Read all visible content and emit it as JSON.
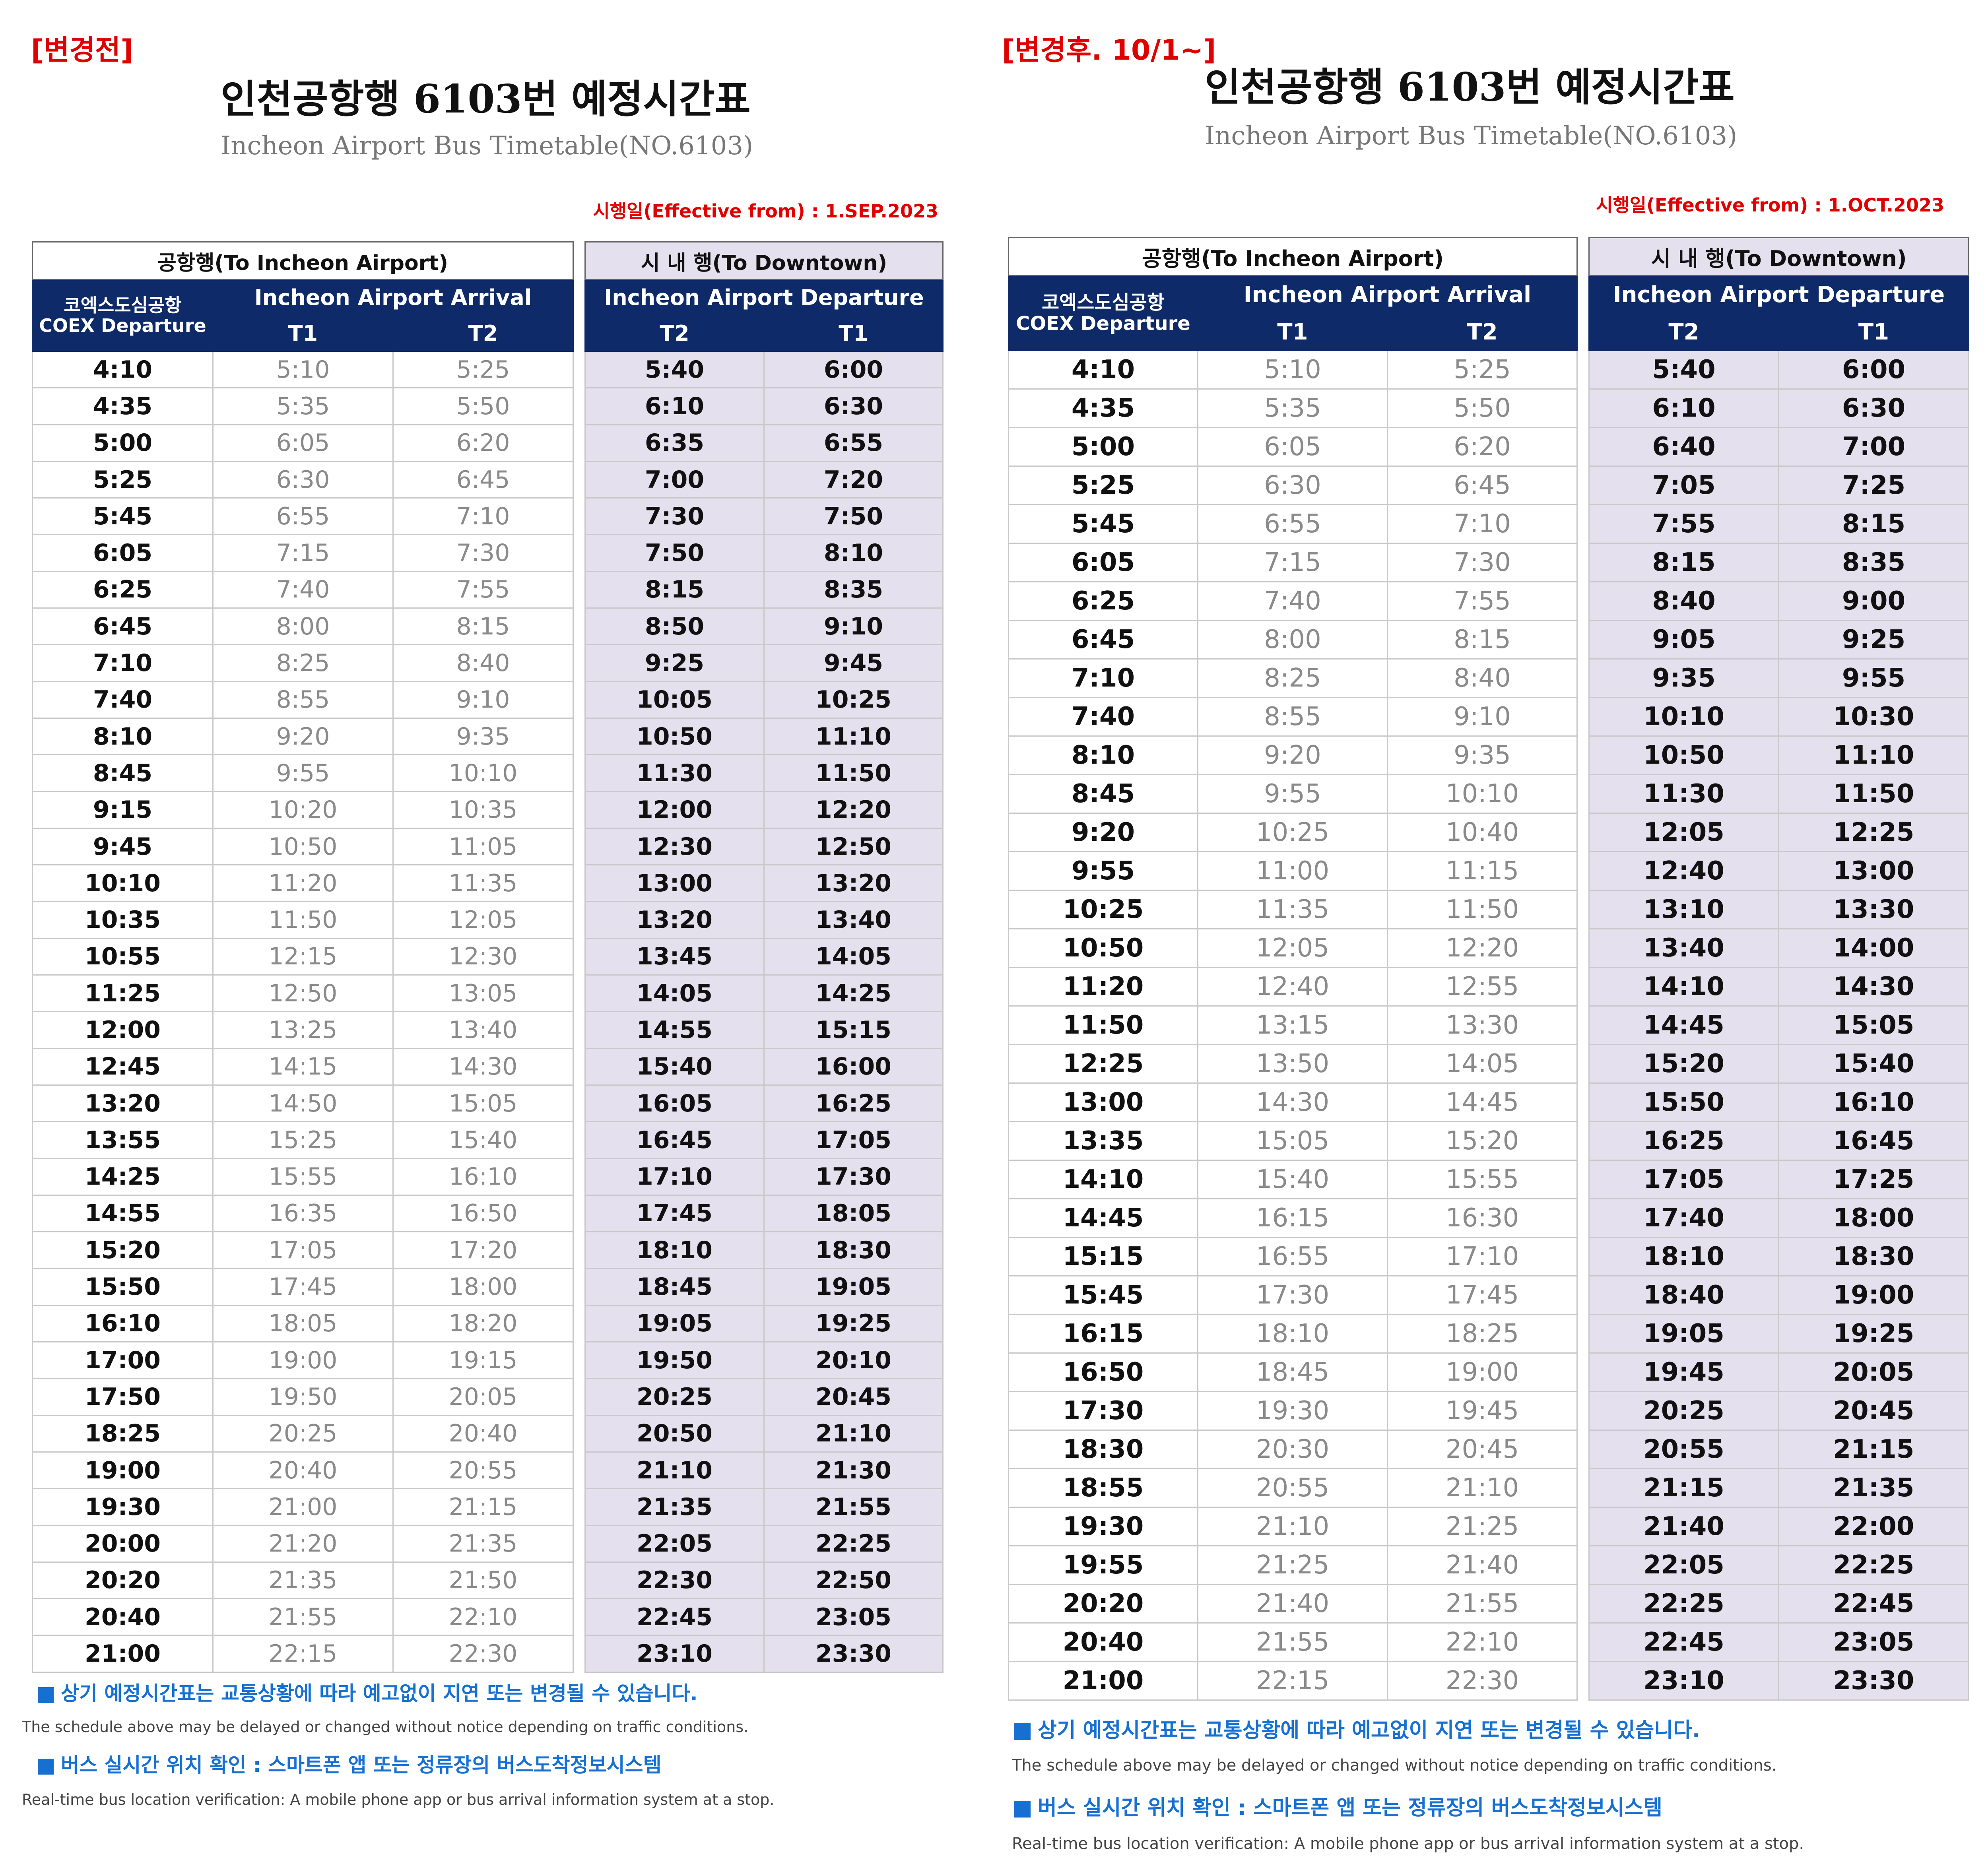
{
  "before": {
    "tag": "[변경전]",
    "title": "인천공항행 6103번 예정시간표",
    "subtitle": "Incheon Airport Bus Timetable(NO.6103)",
    "effective": "시행일(Effective from) : 1.SEP.2023",
    "to_airport": {
      "group_title": "공항행(To Incheon Airport)",
      "departure_ko": "코엑스도심공항",
      "departure_en": "COEX Departure",
      "arrival": "Incheon Airport Arrival",
      "col1": "T1",
      "col2": "T2",
      "rows": [
        [
          "4:10",
          "5:10",
          "5:25"
        ],
        [
          "4:35",
          "5:35",
          "5:50"
        ],
        [
          "5:00",
          "6:05",
          "6:20"
        ],
        [
          "5:25",
          "6:30",
          "6:45"
        ],
        [
          "5:45",
          "6:55",
          "7:10"
        ],
        [
          "6:05",
          "7:15",
          "7:30"
        ],
        [
          "6:25",
          "7:40",
          "7:55"
        ],
        [
          "6:45",
          "8:00",
          "8:15"
        ],
        [
          "7:10",
          "8:25",
          "8:40"
        ],
        [
          "7:40",
          "8:55",
          "9:10"
        ],
        [
          "8:10",
          "9:20",
          "9:35"
        ],
        [
          "8:45",
          "9:55",
          "10:10"
        ],
        [
          "9:15",
          "10:20",
          "10:35"
        ],
        [
          "9:45",
          "10:50",
          "11:05"
        ],
        [
          "10:10",
          "11:20",
          "11:35"
        ],
        [
          "10:35",
          "11:50",
          "12:05"
        ],
        [
          "10:55",
          "12:15",
          "12:30"
        ],
        [
          "11:25",
          "12:50",
          "13:05"
        ],
        [
          "12:00",
          "13:25",
          "13:40"
        ],
        [
          "12:45",
          "14:15",
          "14:30"
        ],
        [
          "13:20",
          "14:50",
          "15:05"
        ],
        [
          "13:55",
          "15:25",
          "15:40"
        ],
        [
          "14:25",
          "15:55",
          "16:10"
        ],
        [
          "14:55",
          "16:35",
          "16:50"
        ],
        [
          "15:20",
          "17:05",
          "17:20"
        ],
        [
          "15:50",
          "17:45",
          "18:00"
        ],
        [
          "16:10",
          "18:05",
          "18:20"
        ],
        [
          "17:00",
          "19:00",
          "19:15"
        ],
        [
          "17:50",
          "19:50",
          "20:05"
        ],
        [
          "18:25",
          "20:25",
          "20:40"
        ],
        [
          "19:00",
          "20:40",
          "20:55"
        ],
        [
          "19:30",
          "21:00",
          "21:15"
        ],
        [
          "20:00",
          "21:20",
          "21:35"
        ],
        [
          "20:20",
          "21:35",
          "21:50"
        ],
        [
          "20:40",
          "21:55",
          "22:10"
        ],
        [
          "21:00",
          "22:15",
          "22:30"
        ]
      ]
    },
    "to_downtown": {
      "group_title": "시 내 행(To Downtown)",
      "departure": "Incheon Airport Departure",
      "col1": "T2",
      "col2": "T1",
      "rows": [
        [
          "5:40",
          "6:00"
        ],
        [
          "6:10",
          "6:30"
        ],
        [
          "6:35",
          "6:55"
        ],
        [
          "7:00",
          "7:20"
        ],
        [
          "7:30",
          "7:50"
        ],
        [
          "7:50",
          "8:10"
        ],
        [
          "8:15",
          "8:35"
        ],
        [
          "8:50",
          "9:10"
        ],
        [
          "9:25",
          "9:45"
        ],
        [
          "10:05",
          "10:25"
        ],
        [
          "10:50",
          "11:10"
        ],
        [
          "11:30",
          "11:50"
        ],
        [
          "12:00",
          "12:20"
        ],
        [
          "12:30",
          "12:50"
        ],
        [
          "13:00",
          "13:20"
        ],
        [
          "13:20",
          "13:40"
        ],
        [
          "13:45",
          "14:05"
        ],
        [
          "14:05",
          "14:25"
        ],
        [
          "14:55",
          "15:15"
        ],
        [
          "15:40",
          "16:00"
        ],
        [
          "16:05",
          "16:25"
        ],
        [
          "16:45",
          "17:05"
        ],
        [
          "17:10",
          "17:30"
        ],
        [
          "17:45",
          "18:05"
        ],
        [
          "18:10",
          "18:30"
        ],
        [
          "18:45",
          "19:05"
        ],
        [
          "19:05",
          "19:25"
        ],
        [
          "19:50",
          "20:10"
        ],
        [
          "20:25",
          "20:45"
        ],
        [
          "20:50",
          "21:10"
        ],
        [
          "21:10",
          "21:30"
        ],
        [
          "21:35",
          "21:55"
        ],
        [
          "22:05",
          "22:25"
        ],
        [
          "22:30",
          "22:50"
        ],
        [
          "22:45",
          "23:05"
        ],
        [
          "23:10",
          "23:30"
        ]
      ]
    },
    "note1_ko": "상기 예정시간표는 교통상황에 따라 예고없이 지연 또는 변경될 수 있습니다.",
    "note1_en": "The schedule above may be delayed or changed without notice depending on traffic conditions.",
    "note2_ko": "버스 실시간 위치 확인 : 스마트폰 앱 또는 정류장의 버스도착정보시스템",
    "note2_en": "Real-time bus location verification: A mobile phone app or bus arrival information system at a stop."
  },
  "after": {
    "tag": "[변경후. 10/1~]",
    "title": "인천공항행 6103번 예정시간표",
    "subtitle": "Incheon Airport Bus Timetable(NO.6103)",
    "effective": "시행일(Effective from) : 1.OCT.2023",
    "to_airport": {
      "group_title": "공항행(To Incheon Airport)",
      "departure_ko": "코엑스도심공항",
      "departure_en": "COEX Departure",
      "arrival": "Incheon Airport Arrival",
      "col1": "T1",
      "col2": "T2",
      "rows": [
        [
          "4:10",
          "5:10",
          "5:25"
        ],
        [
          "4:35",
          "5:35",
          "5:50"
        ],
        [
          "5:00",
          "6:05",
          "6:20"
        ],
        [
          "5:25",
          "6:30",
          "6:45"
        ],
        [
          "5:45",
          "6:55",
          "7:10"
        ],
        [
          "6:05",
          "7:15",
          "7:30"
        ],
        [
          "6:25",
          "7:40",
          "7:55"
        ],
        [
          "6:45",
          "8:00",
          "8:15"
        ],
        [
          "7:10",
          "8:25",
          "8:40"
        ],
        [
          "7:40",
          "8:55",
          "9:10"
        ],
        [
          "8:10",
          "9:20",
          "9:35"
        ],
        [
          "8:45",
          "9:55",
          "10:10"
        ],
        [
          "9:20",
          "10:25",
          "10:40"
        ],
        [
          "9:55",
          "11:00",
          "11:15"
        ],
        [
          "10:25",
          "11:35",
          "11:50"
        ],
        [
          "10:50",
          "12:05",
          "12:20"
        ],
        [
          "11:20",
          "12:40",
          "12:55"
        ],
        [
          "11:50",
          "13:15",
          "13:30"
        ],
        [
          "12:25",
          "13:50",
          "14:05"
        ],
        [
          "13:00",
          "14:30",
          "14:45"
        ],
        [
          "13:35",
          "15:05",
          "15:20"
        ],
        [
          "14:10",
          "15:40",
          "15:55"
        ],
        [
          "14:45",
          "16:15",
          "16:30"
        ],
        [
          "15:15",
          "16:55",
          "17:10"
        ],
        [
          "15:45",
          "17:30",
          "17:45"
        ],
        [
          "16:15",
          "18:10",
          "18:25"
        ],
        [
          "16:50",
          "18:45",
          "19:00"
        ],
        [
          "17:30",
          "19:30",
          "19:45"
        ],
        [
          "18:30",
          "20:30",
          "20:45"
        ],
        [
          "18:55",
          "20:55",
          "21:10"
        ],
        [
          "19:30",
          "21:10",
          "21:25"
        ],
        [
          "19:55",
          "21:25",
          "21:40"
        ],
        [
          "20:20",
          "21:40",
          "21:55"
        ],
        [
          "20:40",
          "21:55",
          "22:10"
        ],
        [
          "21:00",
          "22:15",
          "22:30"
        ]
      ]
    },
    "to_downtown": {
      "group_title": "시 내 행(To Downtown)",
      "departure": "Incheon Airport Departure",
      "col1": "T2",
      "col2": "T1",
      "rows": [
        [
          "5:40",
          "6:00"
        ],
        [
          "6:10",
          "6:30"
        ],
        [
          "6:40",
          "7:00"
        ],
        [
          "7:05",
          "7:25"
        ],
        [
          "7:55",
          "8:15"
        ],
        [
          "8:15",
          "8:35"
        ],
        [
          "8:40",
          "9:00"
        ],
        [
          "9:05",
          "9:25"
        ],
        [
          "9:35",
          "9:55"
        ],
        [
          "10:10",
          "10:30"
        ],
        [
          "10:50",
          "11:10"
        ],
        [
          "11:30",
          "11:50"
        ],
        [
          "12:05",
          "12:25"
        ],
        [
          "12:40",
          "13:00"
        ],
        [
          "13:10",
          "13:30"
        ],
        [
          "13:40",
          "14:00"
        ],
        [
          "14:10",
          "14:30"
        ],
        [
          "14:45",
          "15:05"
        ],
        [
          "15:20",
          "15:40"
        ],
        [
          "15:50",
          "16:10"
        ],
        [
          "16:25",
          "16:45"
        ],
        [
          "17:05",
          "17:25"
        ],
        [
          "17:40",
          "18:00"
        ],
        [
          "18:10",
          "18:30"
        ],
        [
          "18:40",
          "19:00"
        ],
        [
          "19:05",
          "19:25"
        ],
        [
          "19:45",
          "20:05"
        ],
        [
          "20:25",
          "20:45"
        ],
        [
          "20:55",
          "21:15"
        ],
        [
          "21:15",
          "21:35"
        ],
        [
          "21:40",
          "22:00"
        ],
        [
          "22:05",
          "22:25"
        ],
        [
          "22:25",
          "22:45"
        ],
        [
          "22:45",
          "23:05"
        ],
        [
          "23:10",
          "23:30"
        ]
      ]
    },
    "note1_ko": "상기 예정시간표는 교통상황에 따라 예고없이 지연 또는 변경될 수 있습니다.",
    "note1_en": "The schedule above may be delayed or changed without notice depending on traffic conditions.",
    "note2_ko": "버스 실시간 위치 확인 : 스마트폰 앱 또는 정류장의 버스도착정보시스템",
    "note2_en": "Real-time bus location verification: A mobile phone app or bus arrival information system at a stop."
  }
}
